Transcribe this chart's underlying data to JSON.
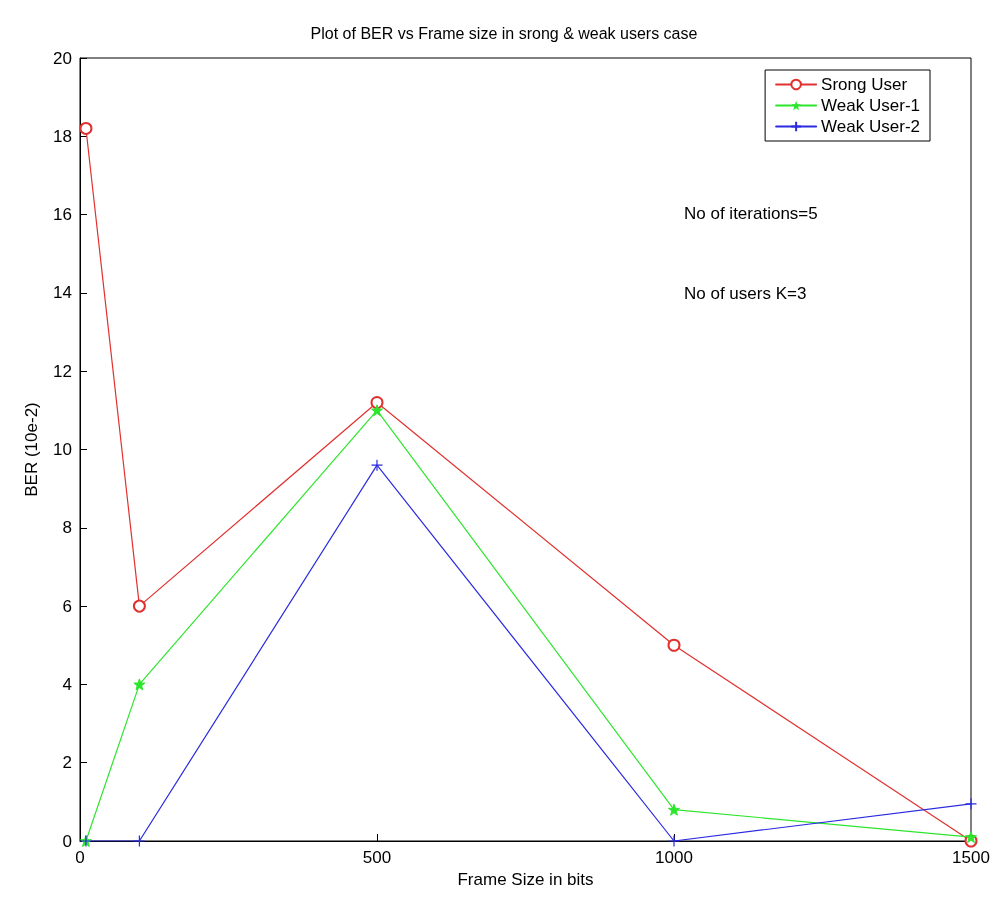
{
  "chart_data": {
    "type": "line",
    "title": "Plot of BER vs Frame size in srong & weak users case",
    "xlabel": "Frame Size in bits",
    "ylabel": "BER (10e-2)",
    "x": [
      10,
      100,
      500,
      1000,
      1500
    ],
    "series": [
      {
        "name": "Srong User",
        "color": "#e0312f",
        "marker": "circle",
        "values": [
          18.2,
          6,
          11.2,
          5,
          0
        ]
      },
      {
        "name": "Weak User-1",
        "color": "#2ee52e",
        "marker": "star",
        "values": [
          0,
          4,
          11,
          0.8,
          0.1
        ]
      },
      {
        "name": "Weak User-2",
        "color": "#2a2ae0",
        "marker": "cross",
        "values": [
          0,
          0,
          9.6,
          0,
          0.95
        ]
      }
    ],
    "xlim": [
      0,
      1500
    ],
    "xticks": [
      0,
      500,
      1000,
      1500
    ],
    "ylim": [
      0,
      20
    ],
    "yticks": [
      0,
      2,
      4,
      6,
      8,
      10,
      12,
      14,
      16,
      18,
      20
    ],
    "grid": false,
    "legend": "top right",
    "line_style": "solid",
    "annotations": [
      "No of iterations=5",
      "No of users K=3"
    ]
  }
}
